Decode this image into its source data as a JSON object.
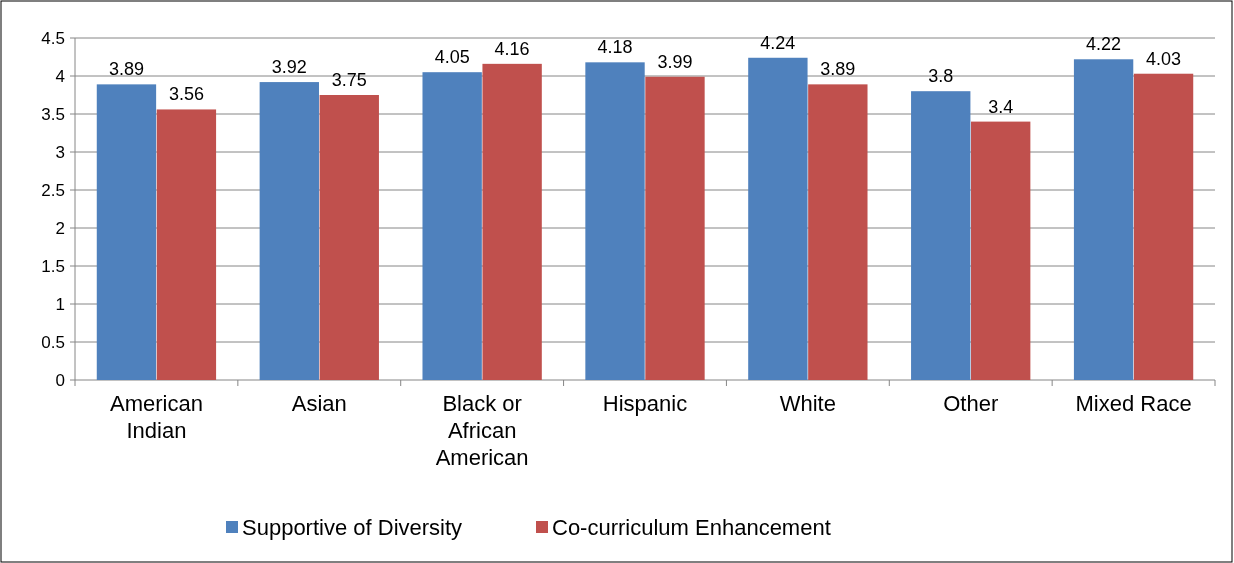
{
  "chart_data": {
    "type": "bar",
    "categories": [
      "American Indian",
      "Asian",
      "Black or African American",
      "Hispanic",
      "White",
      "Other",
      "Mixed Race"
    ],
    "series": [
      {
        "name": "Supportive of Diversity",
        "color": "#4f81bd",
        "values": [
          3.89,
          3.92,
          4.05,
          4.18,
          4.24,
          3.8,
          4.22
        ]
      },
      {
        "name": "Co-curriculum Enhancement",
        "color": "#c0504d",
        "values": [
          3.56,
          3.75,
          4.16,
          3.99,
          3.89,
          3.4,
          4.03
        ]
      }
    ],
    "ylim": [
      0,
      4.5
    ],
    "yticks": [
      0,
      0.5,
      1,
      1.5,
      2,
      2.5,
      3,
      3.5,
      4,
      4.5
    ],
    "grid": "y",
    "legend": "bottom",
    "data_labels": true
  }
}
